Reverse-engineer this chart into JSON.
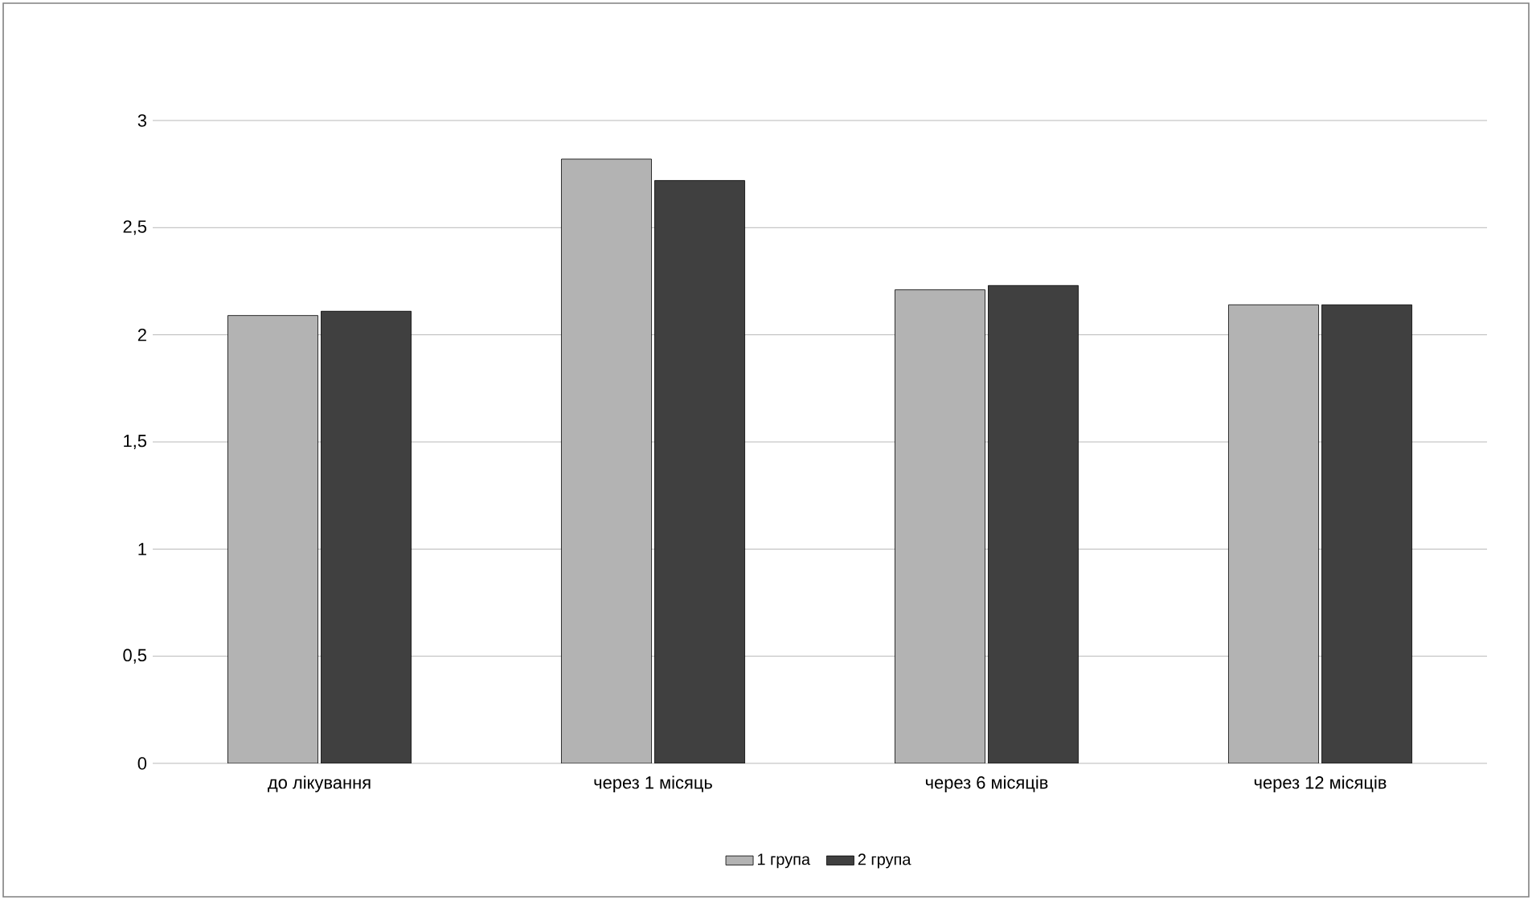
{
  "chart_data": {
    "type": "bar",
    "categories": [
      "до лікування",
      "через 1 місяць",
      "через 6 місяців",
      "через 12 місяців"
    ],
    "series": [
      {
        "name": "1 група",
        "color": "#b3b3b3",
        "values": [
          2.09,
          2.82,
          2.21,
          2.14
        ]
      },
      {
        "name": "2 група",
        "color": "#404040",
        "values": [
          2.11,
          2.72,
          2.23,
          2.14
        ]
      }
    ],
    "ylim": [
      0,
      3
    ],
    "yticks": [
      0,
      {
        "value": 0.5,
        "label": "0,5"
      },
      1,
      {
        "value": 1.5,
        "label": "1,5"
      },
      2,
      {
        "value": 2.5,
        "label": "2,5"
      },
      3
    ],
    "grid": "y",
    "legend": "bottom"
  }
}
